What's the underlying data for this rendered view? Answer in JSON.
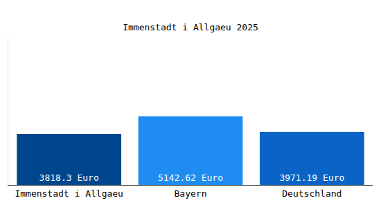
{
  "chart_data": {
    "type": "bar",
    "title": "Immenstadt i Allgaeu 2025",
    "categories": [
      "Immenstadt i Allgaeu",
      "Bayern",
      "Deutschland"
    ],
    "values": [
      3818.3,
      5142.62,
      3971.19
    ],
    "value_labels": [
      "3818.3 Euro",
      "5142.62 Euro",
      "3971.19 Euro"
    ],
    "colors": [
      "#00468c",
      "#1e8cf0",
      "#0a64c8"
    ],
    "ylim": [
      0,
      11000
    ],
    "yticks": [],
    "data_labels": true,
    "tick_labels": "x",
    "grid": false
  }
}
